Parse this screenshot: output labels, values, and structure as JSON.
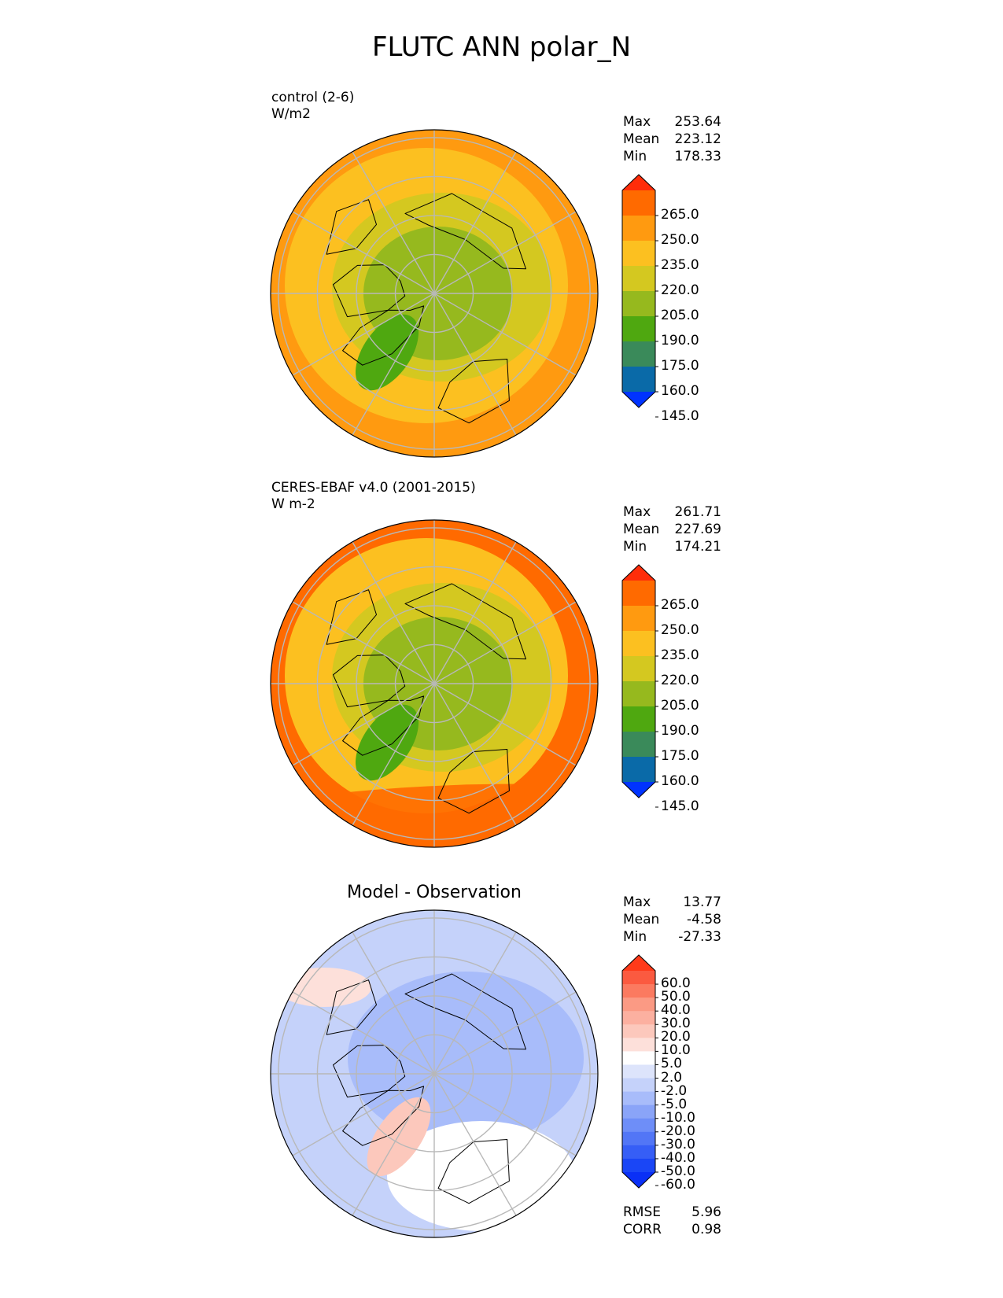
{
  "title": "FLUTC ANN polar_N",
  "chart_data": [
    {
      "type": "heatmap",
      "projection": "north-polar-stereographic",
      "label_line1": "control (2-6)",
      "label_line2": "W/m2",
      "stats": [
        {
          "label": "Max",
          "value": "253.64"
        },
        {
          "label": "Mean",
          "value": "223.12"
        },
        {
          "label": "Min",
          "value": "178.33"
        }
      ],
      "colorbar": {
        "ticks": [
          "265.0",
          "250.0",
          "235.0",
          "220.0",
          "205.0",
          "190.0",
          "175.0",
          "160.0",
          "145.0"
        ],
        "colors": [
          "#ff2d0a",
          "#ff6a00",
          "#ff9a10",
          "#fcc020",
          "#d4c820",
          "#96b91e",
          "#4fa810",
          "#3a8a5a",
          "#0a6aa8",
          "#0033ff"
        ],
        "extend": "both"
      }
    },
    {
      "type": "heatmap",
      "projection": "north-polar-stereographic",
      "label_line1": "CERES-EBAF v4.0 (2001-2015)",
      "label_line2": "W m-2",
      "stats": [
        {
          "label": "Max",
          "value": "261.71"
        },
        {
          "label": "Mean",
          "value": "227.69"
        },
        {
          "label": "Min",
          "value": "174.21"
        }
      ],
      "colorbar": {
        "ticks": [
          "265.0",
          "250.0",
          "235.0",
          "220.0",
          "205.0",
          "190.0",
          "175.0",
          "160.0",
          "145.0"
        ],
        "colors": [
          "#ff2d0a",
          "#ff6a00",
          "#ff9a10",
          "#fcc020",
          "#d4c820",
          "#96b91e",
          "#4fa810",
          "#3a8a5a",
          "#0a6aa8",
          "#0033ff"
        ],
        "extend": "both"
      }
    },
    {
      "type": "heatmap",
      "projection": "north-polar-stereographic",
      "title": "Model - Observation",
      "stats": [
        {
          "label": "Max",
          "value": "13.77"
        },
        {
          "label": "Mean",
          "value": "-4.58"
        },
        {
          "label": "Min",
          "value": "-27.33"
        }
      ],
      "metrics": [
        {
          "label": "RMSE",
          "value": "5.96"
        },
        {
          "label": "CORR",
          "value": "0.98"
        }
      ],
      "colorbar": {
        "ticks": [
          "60.0",
          "50.0",
          "40.0",
          "30.0",
          "20.0",
          "10.0",
          "5.0",
          "2.0",
          "-2.0",
          "-5.0",
          "-10.0",
          "-20.0",
          "-30.0",
          "-40.0",
          "-50.0",
          "-60.0"
        ],
        "colors": [
          "#ff3a1a",
          "#fb5a40",
          "#fb7a60",
          "#fb9a84",
          "#fcb0a0",
          "#fcc8bc",
          "#fde0da",
          "#ffffff",
          "#dde4fb",
          "#c5d2fa",
          "#a8bcfa",
          "#8aa4f8",
          "#6e8ef8",
          "#5276f6",
          "#365ef6",
          "#1a46f6",
          "#0a30f6"
        ],
        "extend": "both"
      }
    }
  ]
}
